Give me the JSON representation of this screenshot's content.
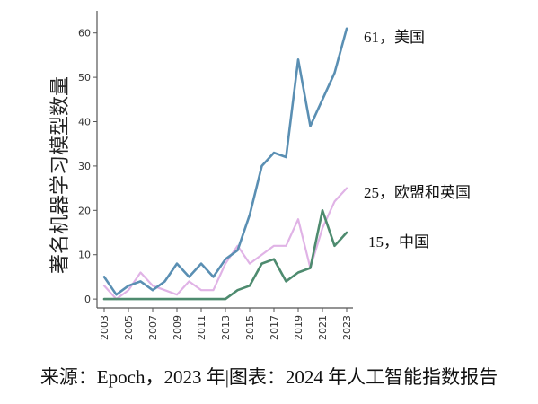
{
  "chart_data": {
    "type": "line",
    "x": [
      2003,
      2004,
      2005,
      2006,
      2007,
      2008,
      2009,
      2010,
      2011,
      2012,
      2013,
      2014,
      2015,
      2016,
      2017,
      2018,
      2019,
      2020,
      2021,
      2022,
      2023
    ],
    "xticks": [
      "2003",
      "2005",
      "2007",
      "2009",
      "2011",
      "2013",
      "2015",
      "2017",
      "2019",
      "2021",
      "2023"
    ],
    "yticks": [
      "0",
      "10",
      "20",
      "30",
      "40",
      "50",
      "60"
    ],
    "ylim": [
      -2,
      65
    ],
    "ylabel": "著名机器学习模型数量",
    "xlabel": "",
    "grid": false,
    "series": [
      {
        "name": "美国",
        "color": "#5a8fb3",
        "values": [
          5,
          1,
          3,
          4,
          2,
          4,
          8,
          5,
          8,
          5,
          9,
          11,
          19,
          30,
          33,
          32,
          54,
          39,
          45,
          51,
          61
        ]
      },
      {
        "name": "欧盟和英国",
        "color": "#e0b3e6",
        "values": [
          3,
          0,
          2,
          6,
          3,
          2,
          1,
          4,
          2,
          2,
          8,
          12,
          8,
          10,
          12,
          12,
          18,
          7,
          16,
          22,
          25
        ]
      },
      {
        "name": "中国",
        "color": "#4e8b6f",
        "values": [
          0,
          0,
          0,
          0,
          0,
          0,
          0,
          0,
          0,
          0,
          0,
          2,
          3,
          8,
          9,
          4,
          6,
          7,
          20,
          12,
          15
        ]
      }
    ],
    "end_labels": [
      "61，美国",
      "25，欧盟和英国",
      "15，中国"
    ],
    "caption": "来源：Epoch，2023 年|图表：2024 年人工智能指数报告"
  }
}
